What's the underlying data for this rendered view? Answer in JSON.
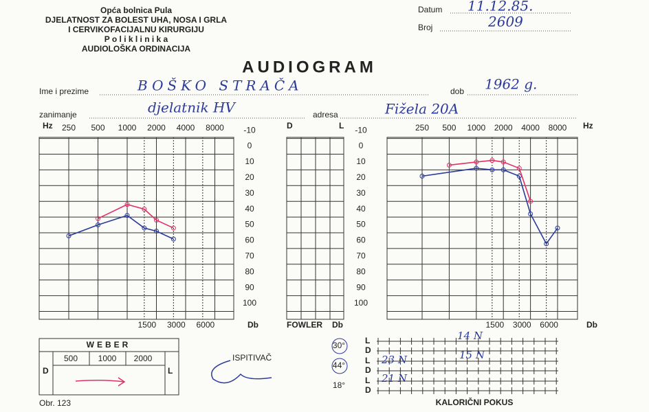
{
  "header": {
    "institution": [
      "Opća bolnica Pula",
      "DJELATNOST ZA BOLEST UHA, NOSA I GRLA",
      "I CERVIKOFACIJALNU KIRURGIJU",
      "P o l i k l i n i k a",
      "AUDIOLOŠKA ORDINACIJA"
    ],
    "date_label": "Datum",
    "date": "11.12.85.",
    "number_label": "Broj",
    "number": "2609"
  },
  "title": "AUDIOGRAM",
  "patient": {
    "name_label": "Ime i prezime",
    "name": "BOŠKO STRAČA",
    "birth_label": "dob",
    "birth": "1962 g.",
    "occupation_label": "zanimanje",
    "occupation": "djelatnik HV",
    "address_label": "adresa",
    "address": "Fižela 20A"
  },
  "audiogram": {
    "hz_label": "Hz",
    "db_label": "Db",
    "top_frequencies": [
      250,
      500,
      1000,
      2000,
      4000,
      8000
    ],
    "bottom_frequencies": [
      1500,
      3000,
      6000
    ],
    "db_levels": [
      -10,
      0,
      10,
      20,
      30,
      40,
      50,
      60,
      70,
      80,
      90,
      100
    ],
    "left_chart": {
      "blue": {
        "freqs": [
          250,
          500,
          1000,
          1500,
          2000,
          3000
        ],
        "db": [
          57,
          50,
          44,
          52,
          54,
          59
        ]
      },
      "red": {
        "freqs": [
          500,
          1000,
          1500,
          2000,
          3000
        ],
        "db": [
          46,
          37,
          40,
          47,
          52
        ]
      }
    },
    "right_chart": {
      "blue": {
        "freqs": [
          250,
          1000,
          1500,
          2000,
          3000,
          4000,
          6000,
          8000
        ],
        "db": [
          19,
          14,
          15,
          15,
          19,
          43,
          62,
          52
        ]
      },
      "red": {
        "freqs": [
          500,
          1000,
          1500,
          2000,
          3000,
          4000
        ],
        "db": [
          12,
          10,
          9,
          10,
          14,
          35
        ]
      }
    }
  },
  "fowler": {
    "d_label": "D",
    "l_label": "L",
    "label": "FOWLER",
    "db_label": "Db"
  },
  "weber": {
    "title": "WEBER",
    "frequencies": [
      "500",
      "1000",
      "2000"
    ],
    "d_label": "D",
    "l_label": "L"
  },
  "form_number": "Obr. 123",
  "examiner_label": "ISPITIVAČ",
  "caloric": {
    "label": "KALORIČNI POKUS",
    "temperatures": [
      "30°",
      "44°",
      "18°"
    ],
    "rows": [
      [
        "L",
        "D"
      ],
      [
        "L",
        "D"
      ],
      [
        "L",
        "D"
      ]
    ],
    "notes": [
      "14 N",
      "15 N",
      "23 N",
      "21 N"
    ]
  }
}
